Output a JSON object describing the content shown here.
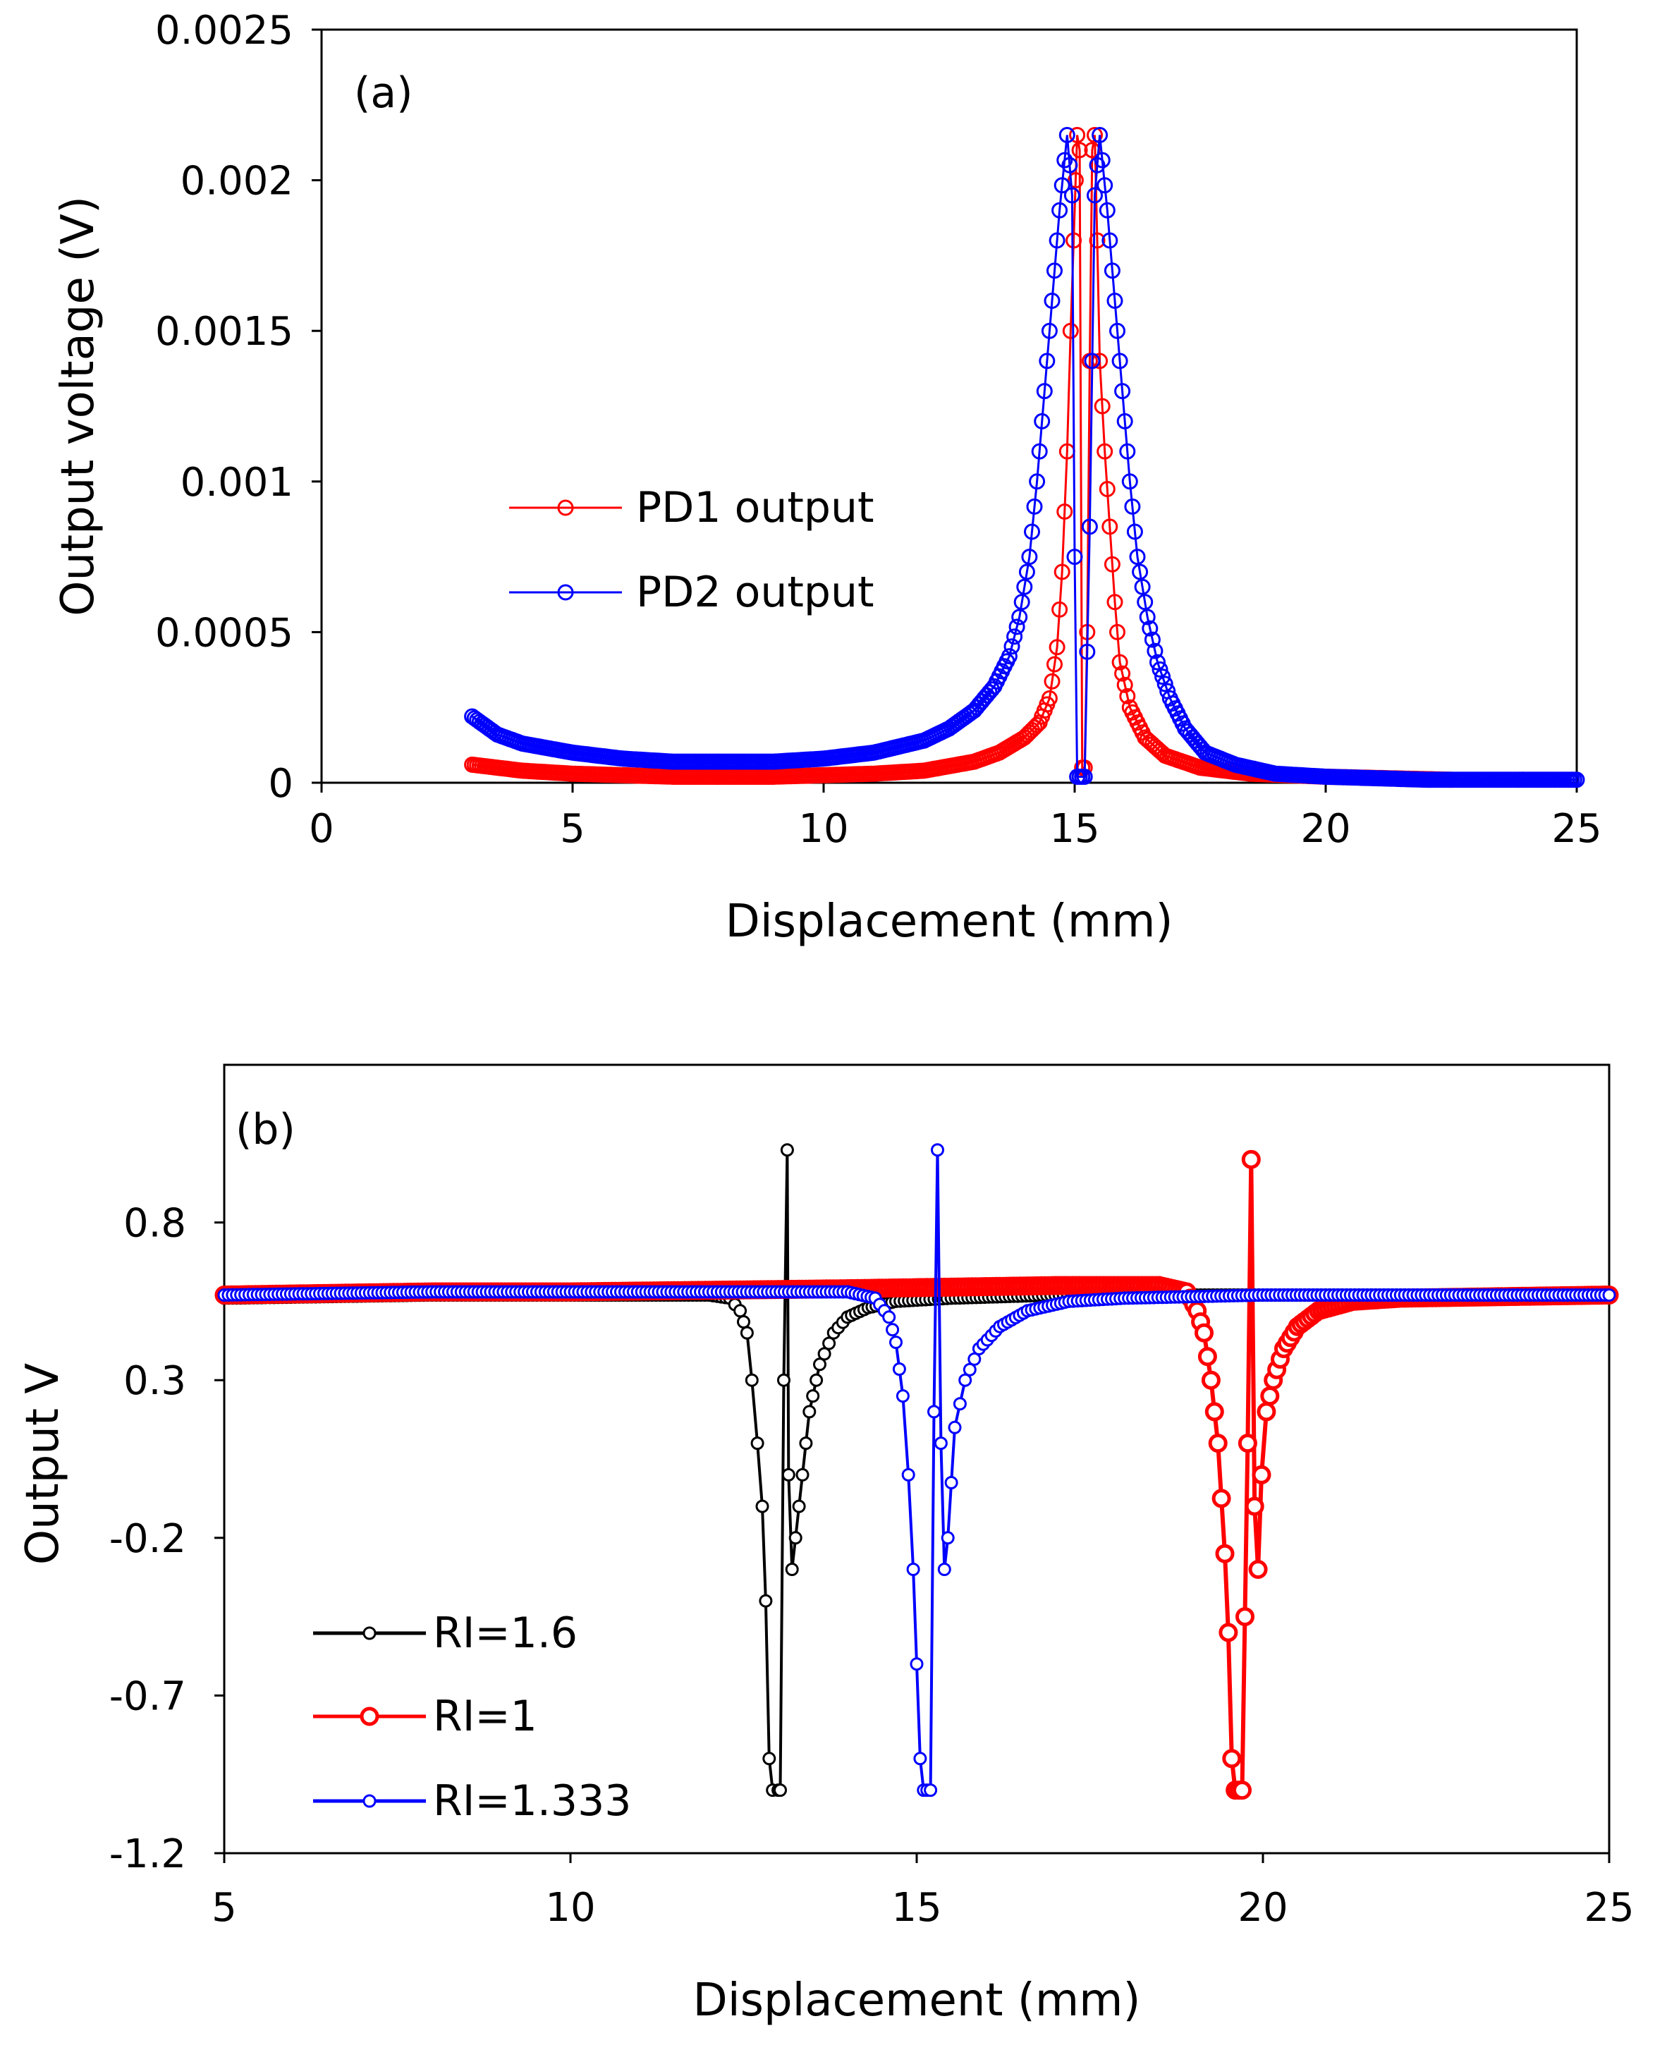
{
  "chart_data": [
    {
      "type": "scatter",
      "panel_label": "(a)",
      "xlabel": "Displacement (mm)",
      "ylabel": "Output voltage (V)",
      "xlim": [
        0,
        25
      ],
      "ylim": [
        0,
        0.0025
      ],
      "x_ticks": [
        "0",
        "5",
        "10",
        "15",
        "20",
        "25"
      ],
      "y_ticks": [
        "0",
        "0.0005",
        "0.001",
        "0.0015",
        "0.002",
        "0.0025"
      ],
      "legend_position": "left",
      "series": [
        {
          "name": "PD1 output",
          "color": "#ff0000",
          "marker": "open-circle",
          "points": [
            [
              3,
              6e-05
            ],
            [
              4,
              4e-05
            ],
            [
              5,
              3e-05
            ],
            [
              6,
              2.5e-05
            ],
            [
              7,
              2e-05
            ],
            [
              8,
              2e-05
            ],
            [
              9,
              2e-05
            ],
            [
              10,
              2.5e-05
            ],
            [
              11,
              3e-05
            ],
            [
              12,
              4e-05
            ],
            [
              13,
              7e-05
            ],
            [
              13.5,
              0.0001
            ],
            [
              14,
              0.00015
            ],
            [
              14.3,
              0.0002
            ],
            [
              14.5,
              0.00028
            ],
            [
              14.65,
              0.00045
            ],
            [
              14.75,
              0.0007
            ],
            [
              14.85,
              0.0011
            ],
            [
              14.92,
              0.0015
            ],
            [
              14.98,
              0.0018
            ],
            [
              15.02,
              0.002
            ],
            [
              15.05,
              0.00215
            ],
            [
              15.1,
              0.0021
            ],
            [
              15.15,
              5e-05
            ],
            [
              15.2,
              5e-05
            ],
            [
              15.25,
              0.0005
            ],
            [
              15.3,
              0.0014
            ],
            [
              15.35,
              0.0021
            ],
            [
              15.4,
              0.00215
            ],
            [
              15.45,
              0.0018
            ],
            [
              15.5,
              0.0014
            ],
            [
              15.6,
              0.0011
            ],
            [
              15.7,
              0.00085
            ],
            [
              15.8,
              0.0006
            ],
            [
              15.9,
              0.0004
            ],
            [
              16.1,
              0.00025
            ],
            [
              16.4,
              0.00015
            ],
            [
              16.8,
              9e-05
            ],
            [
              17.5,
              5e-05
            ],
            [
              18.5,
              3e-05
            ],
            [
              20,
              2e-05
            ],
            [
              22.5,
              1e-05
            ]
          ]
        },
        {
          "name": "PD2 output",
          "color": "#0000ff",
          "marker": "open-circle",
          "points": [
            [
              3,
              0.00022
            ],
            [
              3.5,
              0.00016
            ],
            [
              4,
              0.00013
            ],
            [
              5,
              0.0001
            ],
            [
              6,
              8e-05
            ],
            [
              7,
              7e-05
            ],
            [
              8,
              7e-05
            ],
            [
              9,
              7e-05
            ],
            [
              10,
              8e-05
            ],
            [
              11,
              0.0001
            ],
            [
              12,
              0.00014
            ],
            [
              12.5,
              0.00018
            ],
            [
              13,
              0.00024
            ],
            [
              13.4,
              0.00032
            ],
            [
              13.7,
              0.00042
            ],
            [
              13.9,
              0.00055
            ],
            [
              14.1,
              0.00075
            ],
            [
              14.25,
              0.001
            ],
            [
              14.4,
              0.0013
            ],
            [
              14.55,
              0.0016
            ],
            [
              14.7,
              0.0019
            ],
            [
              14.85,
              0.00215
            ],
            [
              14.95,
              0.00195
            ],
            [
              15.0,
              0.00075
            ],
            [
              15.05,
              2e-05
            ],
            [
              15.1,
              2e-05
            ],
            [
              15.15,
              2e-05
            ],
            [
              15.2,
              2e-05
            ],
            [
              15.3,
              0.00085
            ],
            [
              15.4,
              0.00195
            ],
            [
              15.5,
              0.00215
            ],
            [
              15.65,
              0.0019
            ],
            [
              15.8,
              0.0016
            ],
            [
              15.95,
              0.0013
            ],
            [
              16.1,
              0.001
            ],
            [
              16.25,
              0.00075
            ],
            [
              16.45,
              0.00055
            ],
            [
              16.65,
              0.0004
            ],
            [
              16.9,
              0.00028
            ],
            [
              17.2,
              0.00018
            ],
            [
              17.6,
              0.0001
            ],
            [
              18.2,
              6e-05
            ],
            [
              19,
              3e-05
            ],
            [
              20,
              2e-05
            ],
            [
              22,
              1e-05
            ],
            [
              25,
              1e-05
            ]
          ]
        }
      ]
    },
    {
      "type": "line",
      "panel_label": "(b)",
      "xlabel": "Displacement (mm)",
      "ylabel": "Output V",
      "xlim": [
        5,
        25
      ],
      "ylim": [
        -1.2,
        1.3
      ],
      "x_ticks": [
        "5",
        "10",
        "15",
        "20",
        "25"
      ],
      "y_ticks": [
        "0.8",
        "0.3",
        "-0.2",
        "-0.7",
        "-1.2"
      ],
      "y_tick_values": [
        0.8,
        0.3,
        -0.2,
        -0.7,
        -1.2
      ],
      "legend_position": "bottom-left",
      "series": [
        {
          "name": "RI=1.6",
          "color": "#000000",
          "marker": "open-circle-small",
          "points": [
            [
              5,
              0.56
            ],
            [
              8,
              0.57
            ],
            [
              10,
              0.57
            ],
            [
              11,
              0.57
            ],
            [
              12,
              0.57
            ],
            [
              12.3,
              0.56
            ],
            [
              12.45,
              0.52
            ],
            [
              12.55,
              0.45
            ],
            [
              12.62,
              0.3
            ],
            [
              12.7,
              0.1
            ],
            [
              12.77,
              -0.1
            ],
            [
              12.82,
              -0.4
            ],
            [
              12.87,
              -0.9
            ],
            [
              12.92,
              -1.0
            ],
            [
              13.0,
              -1.0
            ],
            [
              13.03,
              -1.0
            ],
            [
              13.08,
              0.3
            ],
            [
              13.13,
              1.03
            ],
            [
              13.15,
              0.0
            ],
            [
              13.2,
              -0.3
            ],
            [
              13.25,
              -0.2
            ],
            [
              13.35,
              0.0
            ],
            [
              13.45,
              0.2
            ],
            [
              13.6,
              0.35
            ],
            [
              13.8,
              0.45
            ],
            [
              14.0,
              0.5
            ],
            [
              14.3,
              0.53
            ],
            [
              14.7,
              0.55
            ],
            [
              15.5,
              0.56
            ],
            [
              17,
              0.57
            ],
            [
              20,
              0.57
            ],
            [
              25,
              0.57
            ]
          ]
        },
        {
          "name": "RI=1",
          "color": "#ff0000",
          "marker": "open-circle-large",
          "points": [
            [
              5,
              0.57
            ],
            [
              8,
              0.58
            ],
            [
              10,
              0.58
            ],
            [
              14,
              0.59
            ],
            [
              17,
              0.6
            ],
            [
              18.5,
              0.6
            ],
            [
              18.9,
              0.58
            ],
            [
              19.05,
              0.52
            ],
            [
              19.15,
              0.45
            ],
            [
              19.25,
              0.3
            ],
            [
              19.35,
              0.1
            ],
            [
              19.45,
              -0.25
            ],
            [
              19.5,
              -0.5
            ],
            [
              19.55,
              -0.9
            ],
            [
              19.6,
              -1.0
            ],
            [
              19.7,
              -1.0
            ],
            [
              19.78,
              0.1
            ],
            [
              19.83,
              1.0
            ],
            [
              19.88,
              -0.1
            ],
            [
              19.93,
              -0.3
            ],
            [
              19.98,
              0.0
            ],
            [
              20.05,
              0.2
            ],
            [
              20.15,
              0.3
            ],
            [
              20.3,
              0.4
            ],
            [
              20.5,
              0.47
            ],
            [
              20.8,
              0.52
            ],
            [
              21.3,
              0.55
            ],
            [
              22,
              0.56
            ],
            [
              25,
              0.57
            ]
          ]
        },
        {
          "name": "RI=1.333",
          "color": "#0000ff",
          "marker": "open-circle-small",
          "points": [
            [
              5,
              0.57
            ],
            [
              8,
              0.58
            ],
            [
              10,
              0.58
            ],
            [
              12,
              0.58
            ],
            [
              14,
              0.58
            ],
            [
              14.4,
              0.56
            ],
            [
              14.6,
              0.5
            ],
            [
              14.7,
              0.42
            ],
            [
              14.8,
              0.25
            ],
            [
              14.88,
              0.0
            ],
            [
              14.95,
              -0.3
            ],
            [
              15.0,
              -0.6
            ],
            [
              15.05,
              -0.9
            ],
            [
              15.1,
              -1.0
            ],
            [
              15.2,
              -1.0
            ],
            [
              15.25,
              0.2
            ],
            [
              15.3,
              1.03
            ],
            [
              15.35,
              0.1
            ],
            [
              15.4,
              -0.3
            ],
            [
              15.45,
              -0.2
            ],
            [
              15.55,
              0.15
            ],
            [
              15.7,
              0.3
            ],
            [
              15.9,
              0.4
            ],
            [
              16.2,
              0.47
            ],
            [
              16.6,
              0.52
            ],
            [
              17.2,
              0.55
            ],
            [
              18,
              0.56
            ],
            [
              20,
              0.57
            ],
            [
              25,
              0.57
            ]
          ]
        }
      ]
    }
  ]
}
